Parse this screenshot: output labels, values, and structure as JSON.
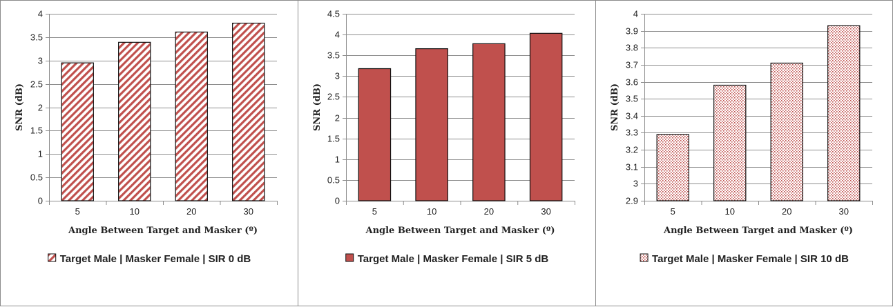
{
  "chart_data": [
    {
      "type": "bar",
      "categories": [
        "5",
        "10",
        "20",
        "30"
      ],
      "series": [
        {
          "name": "Target Male | Masker Female | SIR 0 dB",
          "values": [
            2.95,
            3.39,
            3.61,
            3.8
          ]
        }
      ],
      "xlabel": "Angle Between Target and Masker (º)",
      "ylabel": "SNR (dB)",
      "ylim": [
        0,
        4
      ],
      "yticks": [
        "0",
        "0.5",
        "1",
        "1.5",
        "2",
        "2.5",
        "3",
        "3.5",
        "4"
      ],
      "legend_position": "bottom",
      "grid": true,
      "bar_color": "#c0504d",
      "fill_style": "diagonal-hatch"
    },
    {
      "type": "bar",
      "categories": [
        "5",
        "10",
        "20",
        "30"
      ],
      "series": [
        {
          "name": "Target Male | Masker Female | SIR 5 dB",
          "values": [
            3.18,
            3.66,
            3.78,
            4.03
          ]
        }
      ],
      "xlabel": "Angle Between Target and Masker (º)",
      "ylabel": "SNR (dB)",
      "ylim": [
        0,
        4.5
      ],
      "yticks": [
        "0",
        "0.5",
        "1",
        "1.5",
        "2",
        "2.5",
        "3",
        "3.5",
        "4",
        "4.5"
      ],
      "legend_position": "bottom",
      "grid": true,
      "bar_color": "#c0504d",
      "fill_style": "solid"
    },
    {
      "type": "bar",
      "categories": [
        "5",
        "10",
        "20",
        "30"
      ],
      "series": [
        {
          "name": "Target Male | Masker Female | SIR 10 dB",
          "values": [
            3.29,
            3.58,
            3.71,
            3.93
          ]
        }
      ],
      "xlabel": "Angle Between Target and Masker (º)",
      "ylabel": "SNR (dB)",
      "ylim": [
        2.9,
        4
      ],
      "yticks": [
        "2.9",
        "3",
        "3.1",
        "3.2",
        "3.3",
        "3.4",
        "3.5",
        "3.6",
        "3.7",
        "3.8",
        "3.9",
        "4"
      ],
      "legend_position": "bottom",
      "grid": true,
      "bar_color": "#c0504d",
      "fill_style": "dotted"
    }
  ]
}
